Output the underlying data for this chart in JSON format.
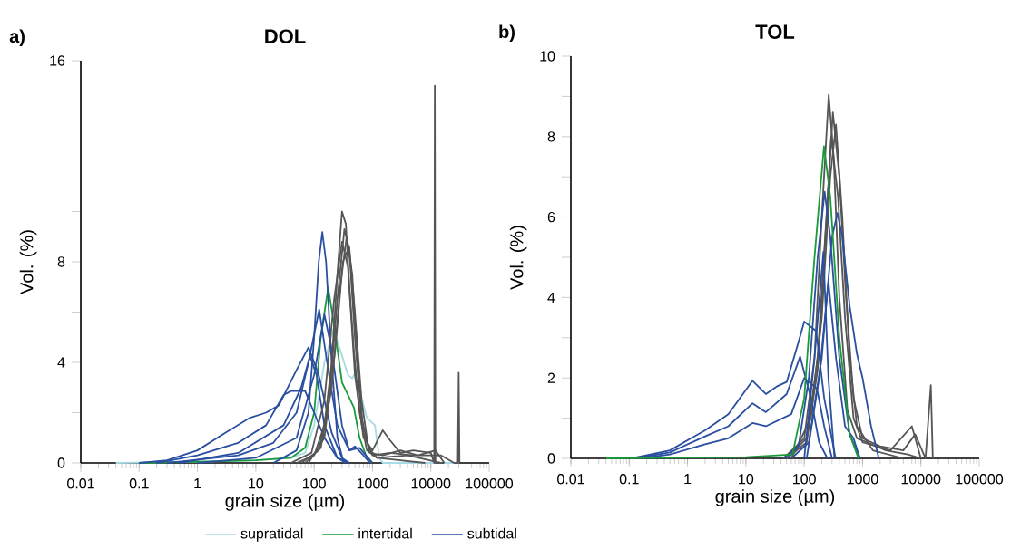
{
  "chart_data": [
    {
      "type": "line",
      "title": "DOL",
      "xlabel": "grain size (µm)",
      "ylabel": "Vol. (%)",
      "annotations": [
        "a)"
      ],
      "log": "x",
      "legend": "bottom",
      "marker": "none",
      "line_style": "solid",
      "xlim": [
        0.01,
        100000
      ],
      "xticks": [
        0.01,
        0.1,
        1,
        10,
        100,
        1000,
        10000,
        100000
      ],
      "ylim": [
        0,
        16
      ],
      "yticks": [
        0,
        {
          "value": 2,
          "label": null
        },
        4,
        {
          "value": 6,
          "label": null
        },
        8,
        {
          "value": 10,
          "label": null
        },
        16
      ],
      "series": [
        {
          "name": "supratidal",
          "color": "#a8dbe6",
          "x": [
            0.04,
            1,
            10,
            40,
            70,
            100,
            150,
            214,
            280,
            380,
            450,
            550,
            650,
            800,
            1100,
            1300,
            1500,
            30000
          ],
          "values": [
            0,
            0.05,
            0.1,
            0.2,
            0.4,
            1.5,
            4.0,
            5.33,
            4.5,
            3.5,
            3.37,
            3.73,
            2.6,
            1.8,
            1.5,
            0.2,
            0,
            0
          ]
        },
        {
          "name": "intertidal",
          "color": "#1a9a3a",
          "x": [
            0.1,
            1,
            10,
            40,
            70,
            100,
            130,
            174,
            220,
            300,
            400,
            480,
            600,
            800,
            1000
          ],
          "values": [
            0,
            0.05,
            0.1,
            0.2,
            0.6,
            2.0,
            5.0,
            6.98,
            5.5,
            3.2,
            2.6,
            2.2,
            1.0,
            0.2,
            0
          ]
        },
        {
          "name": "subtidal",
          "color": "#2a4fa0",
          "x": [
            20,
            50,
            80,
            100,
            120,
            138,
            160,
            200,
            250,
            320
          ],
          "values": [
            0,
            0.5,
            2,
            5,
            8,
            9.18,
            8,
            4,
            1,
            0
          ]
        },
        {
          "color": "#2a4fa0",
          "x": [
            0.1,
            0.3,
            1,
            3,
            8,
            15,
            25,
            50,
            80,
            120,
            200,
            300,
            400
          ],
          "values": [
            0,
            0.1,
            0.5,
            1.2,
            1.8,
            2.0,
            2.3,
            3.7,
            4.6,
            3.5,
            1.2,
            0.2,
            0
          ]
        },
        {
          "color": "#2a4fa0",
          "x": [
            0.2,
            1,
            5,
            15,
            30,
            40,
            70,
            100,
            150,
            250,
            400
          ],
          "values": [
            0,
            0.3,
            0.8,
            1.5,
            2.7,
            2.86,
            2.86,
            2.0,
            1.0,
            0.2,
            0
          ]
        },
        {
          "color": "#2a4fa0",
          "x": [
            0.3,
            5,
            20,
            50,
            80,
            122,
            180,
            250,
            400,
            600,
            1000
          ],
          "values": [
            0,
            0.3,
            0.8,
            2.0,
            4,
            6.1,
            3.5,
            1.5,
            0.5,
            0.6,
            0
          ]
        },
        {
          "color": "#2a4fa0",
          "x": [
            1,
            10,
            50,
            100,
            150,
            200,
            300,
            400,
            500,
            700,
            900
          ],
          "values": [
            0,
            0.2,
            1.0,
            3.5,
            5.9,
            4.5,
            1.5,
            0.5,
            0.66,
            0.3,
            0
          ]
        },
        {
          "color": "#2a4fa0",
          "x": [
            0.5,
            5,
            30,
            60,
            85,
            110,
            150,
            250,
            350
          ],
          "values": [
            0,
            0.4,
            1.5,
            3,
            4.25,
            3.5,
            1.5,
            0.2,
            0
          ]
        },
        {
          "color": "#555555",
          "x": [
            50,
            100,
            150,
            200,
            250,
            300,
            350,
            400,
            500,
            700,
            1000,
            1500,
            2000,
            3000,
            5000,
            10000,
            11400,
            11700,
            12000,
            17000
          ],
          "values": [
            0,
            0.3,
            1.5,
            4,
            7.5,
            10.0,
            9.5,
            7,
            3.5,
            1.0,
            0.5,
            1.3,
            0.9,
            0.4,
            0.5,
            0.4,
            0,
            15,
            0,
            0
          ]
        },
        {
          "color": "#555555",
          "x": [
            60,
            120,
            180,
            250,
            330,
            400,
            500,
            650,
            900,
            1500,
            3000,
            6000,
            12000,
            17000
          ],
          "values": [
            0,
            0.5,
            2.5,
            6.5,
            9.3,
            8.5,
            5.0,
            1.8,
            0.4,
            0.3,
            0.5,
            0.3,
            0.5,
            0
          ]
        },
        {
          "color": "#555555",
          "x": [
            70,
            130,
            200,
            280,
            360,
            450,
            550,
            700,
            1000,
            2000,
            5000,
            15000,
            25000,
            29000,
            30000,
            31000
          ],
          "values": [
            0,
            0.6,
            3.0,
            7.0,
            9.0,
            7.5,
            4.0,
            1.2,
            0.3,
            0.4,
            0.3,
            0.3,
            0,
            0,
            3.59,
            0
          ]
        },
        {
          "color": "#555555",
          "x": [
            40,
            90,
            150,
            220,
            300,
            380,
            480,
            600,
            800,
            1200,
            4000,
            15000
          ],
          "values": [
            0,
            0.4,
            2.5,
            6.5,
            8.8,
            7.8,
            4.5,
            2.0,
            0.5,
            0.2,
            0.3,
            0
          ]
        },
        {
          "color": "#555555",
          "x": [
            80,
            150,
            230,
            310,
            400,
            500,
            650,
            850,
            1200,
            8000
          ],
          "values": [
            0,
            1.0,
            4.5,
            8.0,
            8.6,
            6.0,
            2.5,
            0.6,
            0.2,
            0
          ]
        }
      ]
    },
    {
      "type": "line",
      "title": "TOL",
      "xlabel": "grain size (µm)",
      "ylabel": "Vol. (%)",
      "annotations": [
        "b)"
      ],
      "log": "x",
      "marker": "none",
      "line_style": "solid",
      "xlim": [
        0.01,
        100000
      ],
      "xticks": [
        0.01,
        0.1,
        1,
        10,
        100,
        1000,
        10000,
        100000
      ],
      "ylim": [
        0,
        10
      ],
      "yticks": [
        0,
        {
          "value": 1,
          "label": null
        },
        2,
        {
          "value": 3,
          "label": null
        },
        4,
        {
          "value": 5,
          "label": null
        },
        6,
        {
          "value": 7,
          "label": null
        },
        8,
        {
          "value": 9,
          "label": null
        },
        10
      ],
      "series": [
        {
          "color": "#555555",
          "x": [
            44,
            100,
            150,
            200,
            263,
            320,
            400,
            550,
            800,
            1200,
            2500,
            6000,
            10000
          ],
          "values": [
            0,
            0.5,
            2.5,
            6.0,
            9.04,
            7.5,
            4.0,
            1.2,
            0.5,
            0.4,
            0.2,
            0.1,
            0
          ]
        },
        {
          "color": "#555555",
          "x": [
            50,
            110,
            170,
            240,
            310,
            400,
            520,
            700,
            1000,
            2000,
            5000,
            8000,
            12000,
            14800,
            16000
          ],
          "values": [
            0,
            0.5,
            2.5,
            6.0,
            8.6,
            7.0,
            4.0,
            1.5,
            0.5,
            0.3,
            0.2,
            0.6,
            0,
            1.82,
            0
          ]
        },
        {
          "color": "#555555",
          "x": [
            50,
            110,
            170,
            230,
            290,
            380,
            500,
            700,
            1000,
            3000,
            7000,
            10000
          ],
          "values": [
            0,
            0.4,
            2.2,
            5.5,
            8.0,
            6.5,
            3.5,
            1.0,
            0.4,
            0.2,
            0.8,
            0
          ]
        },
        {
          "color": "#555555",
          "x": [
            60,
            130,
            200,
            280,
            350,
            450,
            600,
            800,
            1500,
            5000
          ],
          "values": [
            0,
            1.0,
            3.5,
            7.0,
            8.3,
            6.0,
            2.5,
            0.8,
            0.2,
            0
          ]
        },
        {
          "color": "#2a4fa0",
          "x": [
            44,
            80,
            120,
            170,
            224,
            280,
            400,
            600,
            910
          ],
          "values": [
            0,
            0.3,
            2.0,
            5.0,
            6.63,
            5.5,
            2.5,
            0.6,
            0
          ]
        },
        {
          "color": "#2a4fa0",
          "x": [
            60,
            120,
            200,
            300,
            370,
            450,
            600,
            800,
            1000,
            1400,
            1900
          ],
          "values": [
            0,
            0.4,
            2.5,
            5.5,
            6.1,
            5.5,
            3.8,
            2.6,
            2.0,
            0.8,
            0
          ]
        },
        {
          "color": "#2a4fa0",
          "x": [
            0.11,
            0.5,
            2,
            5,
            13,
            22,
            35,
            50,
            80,
            100,
            160,
            220,
            345
          ],
          "values": [
            0,
            0.2,
            0.7,
            1.1,
            1.93,
            1.6,
            1.8,
            1.9,
            2.9,
            3.4,
            3.17,
            1.5,
            0
          ]
        },
        {
          "color": "#2a4fa0",
          "x": [
            0.12,
            0.5,
            2,
            5,
            13,
            22,
            50,
            85,
            130,
            180,
            250
          ],
          "values": [
            0,
            0.15,
            0.55,
            0.8,
            1.37,
            1.15,
            1.6,
            2.53,
            1.5,
            0.4,
            0
          ]
        },
        {
          "color": "#2a4fa0",
          "x": [
            0.15,
            0.5,
            2,
            5,
            13,
            22,
            60,
            100,
            165,
            220,
            300
          ],
          "values": [
            0,
            0.1,
            0.35,
            0.5,
            0.88,
            0.8,
            1.1,
            2.0,
            1.74,
            0.8,
            0
          ]
        },
        {
          "color": "#2a4fa0",
          "x": [
            100,
            150,
            213,
            260,
            330
          ],
          "values": [
            0,
            2.5,
            5.13,
            2.0,
            0
          ]
        },
        {
          "color": "#2a4fa0",
          "x": [
            110,
            180,
            260,
            350,
            500,
            700,
            900
          ],
          "values": [
            0,
            2.0,
            4.4,
            2.5,
            0.8,
            0.5,
            0
          ]
        },
        {
          "color": "#1a9a3a",
          "x": [
            0.04,
            1,
            10,
            63,
            100,
            150,
            218,
            280,
            400,
            600,
            850
          ],
          "values": [
            0,
            0.02,
            0.03,
            0.1,
            1.5,
            5.0,
            7.76,
            6.5,
            3.0,
            0.6,
            0
          ]
        }
      ]
    }
  ]
}
